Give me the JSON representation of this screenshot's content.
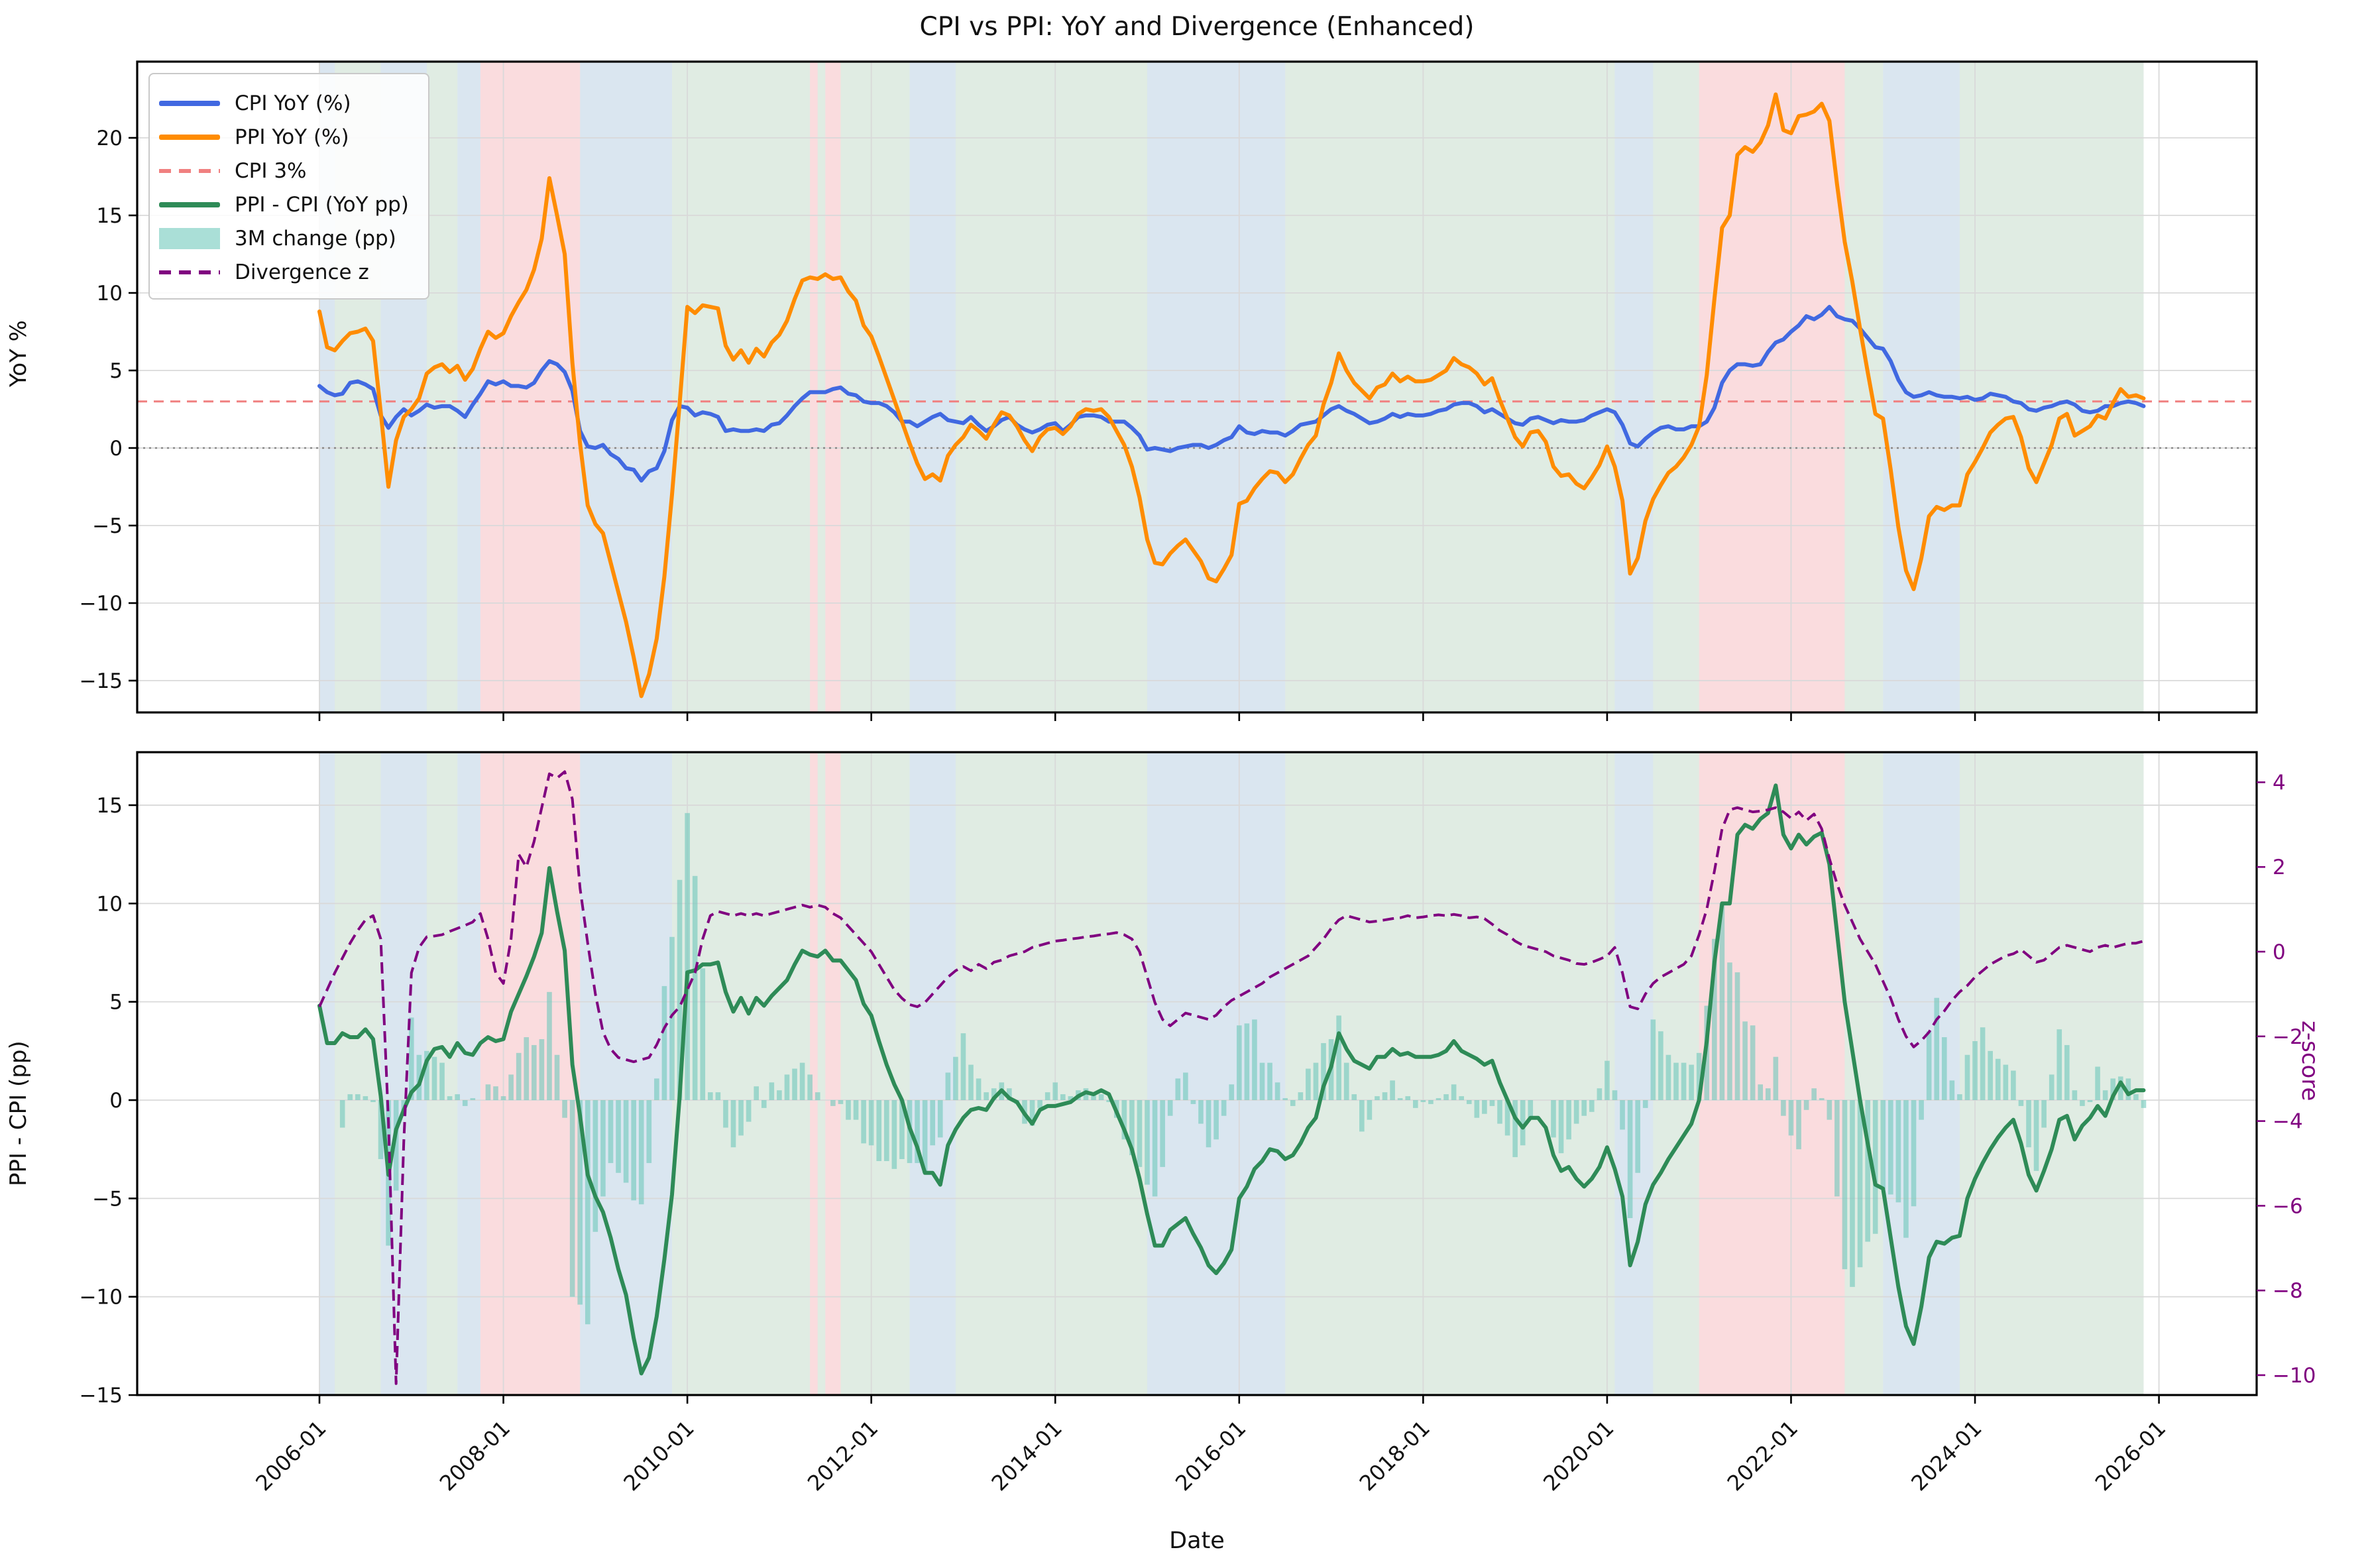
{
  "title": "CPI vs PPI: YoY and Divergence (Enhanced)",
  "axes": {
    "top_ylabel": "YoY %",
    "bottom_ylabel": "PPI - CPI (pp)",
    "right_ylabel": "z-score",
    "xlabel": "Date"
  },
  "legend": {
    "items": [
      {
        "label": "CPI YoY (%)",
        "style": "line",
        "color": "#4169e1"
      },
      {
        "label": "PPI YoY (%)",
        "style": "line",
        "color": "#ff8c00"
      },
      {
        "label": "CPI 3%",
        "style": "dash",
        "color": "#f08080"
      },
      {
        "label": "PPI - CPI (YoY pp)",
        "style": "line",
        "color": "#2e8b57"
      },
      {
        "label": "3M change (pp)",
        "style": "patch",
        "color": "#aadfd7"
      },
      {
        "label": "Divergence z",
        "style": "dash",
        "color": "#800080"
      }
    ]
  },
  "chart_data": {
    "type": "line",
    "x": {
      "start": "2006-01",
      "freq": "monthly",
      "n_points": 239,
      "tick_labels": [
        "2006-01",
        "2008-01",
        "2010-01",
        "2012-01",
        "2014-01",
        "2016-01",
        "2018-01",
        "2020-01",
        "2022-01",
        "2024-01",
        "2026-01"
      ],
      "tick_month_index": [
        0,
        24,
        48,
        72,
        96,
        120,
        144,
        168,
        192,
        216,
        240
      ]
    },
    "panels": [
      {
        "id": "yoy",
        "ylabel": "YoY %",
        "ylim": [
          -17.1,
          24.9
        ],
        "yticks": [
          20,
          15,
          10,
          5,
          0,
          -5,
          -10,
          -15
        ],
        "ytick_labels": [
          "20",
          "15",
          "10",
          "5",
          "0",
          "−5",
          "−10",
          "−15"
        ],
        "reference_lines": [
          {
            "name": "CPI 3%",
            "value": 3,
            "color": "#f08080",
            "style": "dashed"
          },
          {
            "name": "zero",
            "value": 0,
            "color": "#888888",
            "style": "dotted"
          }
        ],
        "series": [
          "cpi_yoy",
          "ppi_yoy"
        ],
        "grid": true
      },
      {
        "id": "divergence",
        "ylabel": "PPI - CPI (pp)",
        "ylim": [
          -15.0,
          17.7
        ],
        "yticks": [
          15,
          10,
          5,
          0,
          -5,
          -10,
          -15
        ],
        "ytick_labels": [
          "15",
          "10",
          "5",
          "0",
          "−5",
          "−10",
          "−15"
        ],
        "y2label": "z-score",
        "y2lim": [
          -10.47,
          4.71
        ],
        "y2ticks": [
          4,
          2,
          0,
          -2,
          -4,
          -6,
          -8,
          -10
        ],
        "y2tick_labels": [
          "4",
          "2",
          "0",
          "−2",
          "−4",
          "−6",
          "−8",
          "−10"
        ],
        "series": [
          "spread",
          "spread_3m_change",
          "divergence_z"
        ],
        "grid": true
      }
    ],
    "series": {
      "cpi_yoy": [
        4.0,
        3.6,
        3.4,
        3.5,
        4.2,
        4.3,
        4.1,
        3.8,
        2.1,
        1.3,
        2.0,
        2.5,
        2.1,
        2.4,
        2.8,
        2.6,
        2.7,
        2.7,
        2.4,
        2.0,
        2.8,
        3.5,
        4.3,
        4.1,
        4.3,
        4.0,
        4.0,
        3.9,
        4.2,
        5.0,
        5.6,
        5.4,
        4.9,
        3.7,
        1.1,
        0.1,
        0.0,
        0.2,
        -0.4,
        -0.7,
        -1.3,
        -1.4,
        -2.1,
        -1.5,
        -1.3,
        -0.2,
        1.8,
        2.7,
        2.6,
        2.1,
        2.3,
        2.2,
        2.0,
        1.1,
        1.2,
        1.1,
        1.1,
        1.2,
        1.1,
        1.5,
        1.6,
        2.1,
        2.7,
        3.2,
        3.6,
        3.6,
        3.6,
        3.8,
        3.9,
        3.5,
        3.4,
        3.0,
        2.9,
        2.9,
        2.7,
        2.3,
        1.7,
        1.7,
        1.4,
        1.7,
        2.0,
        2.2,
        1.8,
        1.7,
        1.6,
        2.0,
        1.5,
        1.1,
        1.4,
        1.8,
        2.0,
        1.5,
        1.2,
        1.0,
        1.2,
        1.5,
        1.6,
        1.1,
        1.5,
        2.0,
        2.1,
        2.1,
        2.0,
        1.7,
        1.7,
        1.7,
        1.3,
        0.8,
        -0.1,
        0.0,
        -0.1,
        -0.2,
        0.0,
        0.1,
        0.2,
        0.2,
        0.0,
        0.2,
        0.5,
        0.7,
        1.4,
        1.0,
        0.9,
        1.1,
        1.0,
        1.0,
        0.8,
        1.1,
        1.5,
        1.6,
        1.7,
        2.1,
        2.5,
        2.7,
        2.4,
        2.2,
        1.9,
        1.6,
        1.7,
        1.9,
        2.2,
        2.0,
        2.2,
        2.1,
        2.1,
        2.2,
        2.4,
        2.5,
        2.8,
        2.9,
        2.9,
        2.7,
        2.3,
        2.5,
        2.2,
        1.9,
        1.6,
        1.5,
        1.9,
        2.0,
        1.8,
        1.6,
        1.8,
        1.7,
        1.7,
        1.8,
        2.1,
        2.3,
        2.5,
        2.3,
        1.5,
        0.3,
        0.1,
        0.6,
        1.0,
        1.3,
        1.4,
        1.2,
        1.2,
        1.4,
        1.4,
        1.7,
        2.6,
        4.2,
        5.0,
        5.4,
        5.4,
        5.3,
        5.4,
        6.2,
        6.8,
        7.0,
        7.5,
        7.9,
        8.5,
        8.3,
        8.6,
        9.1,
        8.5,
        8.3,
        8.2,
        7.7,
        7.1,
        6.5,
        6.4,
        5.6,
        4.4,
        3.6,
        3.3,
        3.4,
        3.6,
        3.4,
        3.3,
        3.3,
        3.2,
        3.3,
        3.1,
        3.2,
        3.5,
        3.4,
        3.3,
        3.0,
        2.9,
        2.5,
        2.4,
        2.6,
        2.7,
        2.9,
        3.0,
        2.8,
        2.4,
        2.3,
        2.4,
        2.7,
        2.7,
        2.9,
        3.0,
        2.9,
        2.7
      ],
      "ppi_yoy": [
        8.8,
        6.5,
        6.3,
        6.9,
        7.4,
        7.5,
        7.7,
        6.9,
        2.3,
        -2.5,
        0.5,
        2.0,
        2.5,
        3.2,
        4.8,
        5.2,
        5.4,
        4.9,
        5.3,
        4.4,
        5.1,
        6.4,
        7.5,
        7.1,
        7.4,
        8.5,
        9.4,
        10.2,
        11.5,
        13.5,
        17.4,
        15.0,
        12.5,
        5.5,
        0.3,
        -3.7,
        -4.9,
        -5.5,
        -7.4,
        -9.3,
        -11.2,
        -13.5,
        -16.0,
        -14.6,
        -12.3,
        -8.3,
        -3.0,
        2.9,
        9.1,
        8.7,
        9.2,
        9.1,
        9.0,
        6.6,
        5.7,
        6.3,
        5.5,
        6.4,
        5.9,
        6.8,
        7.3,
        8.2,
        9.6,
        10.8,
        11.0,
        10.9,
        11.2,
        10.9,
        11.0,
        10.1,
        9.5,
        7.9,
        7.2,
        5.9,
        4.5,
        3.1,
        1.7,
        0.3,
        -1.0,
        -2.0,
        -1.7,
        -2.1,
        -0.5,
        0.2,
        0.7,
        1.5,
        1.1,
        0.6,
        1.5,
        2.3,
        2.1,
        1.4,
        0.5,
        -0.2,
        0.7,
        1.2,
        1.3,
        0.9,
        1.4,
        2.2,
        2.5,
        2.4,
        2.5,
        2.0,
        1.1,
        0.2,
        -1.2,
        -3.2,
        -5.9,
        -7.4,
        -7.5,
        -6.8,
        -6.3,
        -5.9,
        -6.6,
        -7.3,
        -8.4,
        -8.6,
        -7.8,
        -6.9,
        -3.6,
        -3.4,
        -2.6,
        -2.0,
        -1.5,
        -1.6,
        -2.2,
        -1.7,
        -0.7,
        0.2,
        0.8,
        2.8,
        4.2,
        6.1,
        5.0,
        4.2,
        3.7,
        3.2,
        3.9,
        4.1,
        4.8,
        4.3,
        4.6,
        4.3,
        4.3,
        4.4,
        4.7,
        5.0,
        5.8,
        5.4,
        5.2,
        4.8,
        4.1,
        4.5,
        3.1,
        1.9,
        0.7,
        0.1,
        1.0,
        1.1,
        0.4,
        -1.2,
        -1.8,
        -1.7,
        -2.3,
        -2.6,
        -1.9,
        -1.1,
        0.1,
        -1.2,
        -3.4,
        -8.1,
        -7.1,
        -4.7,
        -3.3,
        -2.4,
        -1.6,
        -1.2,
        -0.6,
        0.2,
        1.4,
        4.7,
        9.6,
        14.2,
        15.0,
        18.9,
        19.4,
        19.1,
        19.7,
        20.8,
        22.8,
        20.5,
        20.3,
        21.4,
        21.5,
        21.7,
        22.2,
        21.1,
        17.0,
        13.3,
        10.7,
        7.7,
        4.9,
        2.2,
        1.9,
        -1.4,
        -5.1,
        -7.9,
        -9.1,
        -7.1,
        -4.4,
        -3.8,
        -4.0,
        -3.7,
        -3.7,
        -1.7,
        -0.9,
        0.0,
        1.0,
        1.5,
        1.9,
        2.0,
        0.7,
        -1.3,
        -2.2,
        -1.0,
        0.2,
        1.9,
        2.2,
        0.8,
        1.1,
        1.4,
        2.1,
        1.9,
        2.9,
        3.8,
        3.3,
        3.4,
        3.2
      ],
      "divergence_z": [
        -1.3,
        -0.9,
        -0.5,
        -0.15,
        0.2,
        0.5,
        0.75,
        0.85,
        0.3,
        -4.0,
        -10.2,
        -4.5,
        -0.5,
        0.1,
        0.35,
        0.37,
        0.4,
        0.48,
        0.55,
        0.62,
        0.7,
        0.9,
        0.3,
        -0.5,
        -0.75,
        0.3,
        2.3,
        2.0,
        2.6,
        3.4,
        4.2,
        4.1,
        4.25,
        3.6,
        1.5,
        0.2,
        -1.0,
        -1.9,
        -2.3,
        -2.5,
        -2.55,
        -2.6,
        -2.55,
        -2.5,
        -2.2,
        -1.8,
        -1.5,
        -1.3,
        -0.9,
        -0.5,
        0.3,
        0.85,
        0.95,
        0.9,
        0.85,
        0.9,
        0.85,
        0.9,
        0.85,
        0.9,
        0.95,
        1.0,
        1.05,
        1.1,
        1.05,
        1.1,
        1.05,
        0.9,
        0.8,
        0.6,
        0.4,
        0.2,
        0.0,
        -0.3,
        -0.6,
        -0.9,
        -1.1,
        -1.25,
        -1.3,
        -1.2,
        -1.0,
        -0.8,
        -0.6,
        -0.45,
        -0.35,
        -0.45,
        -0.3,
        -0.4,
        -0.25,
        -0.2,
        -0.1,
        -0.05,
        0.0,
        0.1,
        0.15,
        0.2,
        0.25,
        0.27,
        0.3,
        0.32,
        0.35,
        0.37,
        0.4,
        0.42,
        0.45,
        0.4,
        0.3,
        0.0,
        -0.6,
        -1.2,
        -1.6,
        -1.75,
        -1.6,
        -1.45,
        -1.5,
        -1.55,
        -1.6,
        -1.5,
        -1.3,
        -1.15,
        -1.05,
        -0.95,
        -0.85,
        -0.75,
        -0.6,
        -0.5,
        -0.4,
        -0.3,
        -0.2,
        -0.1,
        0.1,
        0.3,
        0.55,
        0.75,
        0.85,
        0.8,
        0.75,
        0.7,
        0.72,
        0.75,
        0.78,
        0.8,
        0.85,
        0.8,
        0.82,
        0.85,
        0.87,
        0.85,
        0.88,
        0.85,
        0.8,
        0.82,
        0.78,
        0.65,
        0.5,
        0.4,
        0.25,
        0.15,
        0.1,
        0.05,
        0.0,
        -0.1,
        -0.15,
        -0.2,
        -0.28,
        -0.3,
        -0.25,
        -0.18,
        -0.1,
        0.1,
        -0.5,
        -1.3,
        -1.35,
        -1.0,
        -0.75,
        -0.6,
        -0.5,
        -0.4,
        -0.3,
        -0.1,
        0.4,
        1.0,
        1.9,
        2.9,
        3.35,
        3.4,
        3.35,
        3.3,
        3.32,
        3.35,
        3.4,
        3.3,
        3.15,
        3.3,
        3.1,
        3.25,
        2.9,
        2.2,
        1.6,
        1.1,
        0.7,
        0.3,
        0.0,
        -0.3,
        -0.7,
        -1.1,
        -1.6,
        -2.0,
        -2.25,
        -2.1,
        -1.9,
        -1.6,
        -1.4,
        -1.15,
        -0.95,
        -0.8,
        -0.6,
        -0.45,
        -0.3,
        -0.2,
        -0.1,
        -0.05,
        0.05,
        -0.1,
        -0.25,
        -0.2,
        -0.05,
        0.1,
        0.15,
        0.1,
        0.05,
        0.0,
        0.1,
        0.15,
        0.1,
        0.15,
        0.2,
        0.2,
        0.25
      ]
    },
    "derived": {
      "spread": "ppi_yoy[i] - cpi_yoy[i]",
      "spread_3m_change": "spread[i] - spread[i-3]"
    },
    "bands": [
      {
        "from": "2006-01",
        "to": "2006-03",
        "m0": 0,
        "m1": 2,
        "color": "blue"
      },
      {
        "from": "2006-03",
        "to": "2006-09",
        "m0": 2,
        "m1": 8,
        "color": "green"
      },
      {
        "from": "2006-09",
        "to": "2007-03",
        "m0": 8,
        "m1": 14,
        "color": "blue"
      },
      {
        "from": "2007-03",
        "to": "2007-07",
        "m0": 14,
        "m1": 18,
        "color": "green"
      },
      {
        "from": "2007-07",
        "to": "2007-10",
        "m0": 18,
        "m1": 21,
        "color": "blue"
      },
      {
        "from": "2007-10",
        "to": "2008-11",
        "m0": 21,
        "m1": 34,
        "color": "pink"
      },
      {
        "from": "2008-11",
        "to": "2009-11",
        "m0": 34,
        "m1": 46,
        "color": "blue"
      },
      {
        "from": "2009-11",
        "to": "2011-05",
        "m0": 46,
        "m1": 64,
        "color": "green"
      },
      {
        "from": "2011-05",
        "to": "2011-06",
        "m0": 64,
        "m1": 65,
        "color": "pink"
      },
      {
        "from": "2011-06",
        "to": "2011-07",
        "m0": 65,
        "m1": 66,
        "color": "green"
      },
      {
        "from": "2011-07",
        "to": "2011-09",
        "m0": 66,
        "m1": 68,
        "color": "pink"
      },
      {
        "from": "2011-09",
        "to": "2012-06",
        "m0": 68,
        "m1": 77,
        "color": "green"
      },
      {
        "from": "2012-06",
        "to": "2012-11",
        "m0": 77,
        "m1": 83,
        "color": "blue"
      },
      {
        "from": "2012-11",
        "to": "2015-01",
        "m0": 83,
        "m1": 108,
        "color": "green"
      },
      {
        "from": "2015-01",
        "to": "2016-07",
        "m0": 108,
        "m1": 126,
        "color": "blue"
      },
      {
        "from": "2016-07",
        "to": "2020-02",
        "m0": 126,
        "m1": 169,
        "color": "green"
      },
      {
        "from": "2020-02",
        "to": "2020-07",
        "m0": 169,
        "m1": 174,
        "color": "blue"
      },
      {
        "from": "2020-07",
        "to": "2021-01",
        "m0": 174,
        "m1": 180,
        "color": "green"
      },
      {
        "from": "2021-01",
        "to": "2022-08",
        "m0": 180,
        "m1": 199,
        "color": "pink"
      },
      {
        "from": "2022-08",
        "to": "2023-01",
        "m0": 199,
        "m1": 204,
        "color": "green"
      },
      {
        "from": "2023-01",
        "to": "2023-11",
        "m0": 204,
        "m1": 214,
        "color": "blue"
      },
      {
        "from": "2023-11",
        "to": "2025-11",
        "m0": 214,
        "m1": 238,
        "color": "green"
      }
    ],
    "colors": {
      "cpi": "#4169e1",
      "ppi": "#ff8c00",
      "cpi_target": "#f08080",
      "zero_line": "#888888",
      "spread": "#2e8b57",
      "bars": "#6ec8ba",
      "zscore": "#800080",
      "grid": "#d9d9d9",
      "band_blue": "rgba(70,130,180,0.20)",
      "band_green": "rgba(45,130,65,0.15)",
      "band_pink": "rgba(230,60,70,0.18)"
    }
  }
}
